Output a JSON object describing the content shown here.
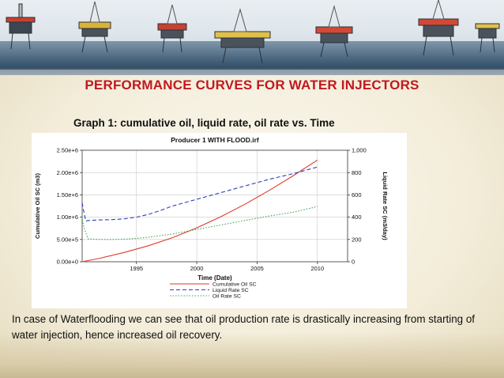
{
  "slide": {
    "title": "PERFORMANCE CURVES FOR WATER INJECTORS",
    "subtitle": "Graph 1: cumulative oil, liquid rate, oil rate vs. Time",
    "caption": "In case of Waterflooding we can see that oil production rate is drastically increasing from starting of water injection, hence increased oil recovery."
  },
  "background": {
    "title_color": "#c0191f",
    "sea_color": "#4c6880"
  },
  "chart_data": {
    "type": "line",
    "title": "Producer 1 WITH FLOOD.irf",
    "xlabel": "Time (Date)",
    "ylabel": "Cumulative Oil SC (m3)",
    "y2label": "Liquid Rate SC (m3/day)",
    "x_ticks": [
      "1995",
      "2000",
      "2005",
      "2010"
    ],
    "y_ticks": [
      "0.00e+0",
      "5.00e+5",
      "1.00e+6",
      "1.50e+6",
      "2.00e+6",
      "2.50e+6"
    ],
    "y2_ticks": [
      "0",
      "200",
      "400",
      "600",
      "800",
      "1,000"
    ],
    "xlim": [
      1990.5,
      2012.5
    ],
    "ylim": [
      0,
      2500000
    ],
    "y2lim": [
      0,
      1000
    ],
    "grid": true,
    "legend_position": "bottom-center",
    "series": [
      {
        "name": "Cumulative Oil SC",
        "axis": "left",
        "color": "#e03a2a",
        "style": "solid",
        "x": [
          1990.5,
          1992,
          1994,
          1996,
          1998,
          2000,
          2002,
          2004,
          2006,
          2008,
          2010
        ],
        "values": [
          0,
          80000,
          210000,
          360000,
          540000,
          760000,
          1010000,
          1290000,
          1600000,
          1930000,
          2280000
        ]
      },
      {
        "name": "Liquid Rate SC",
        "axis": "right",
        "color": "#2d3fb8",
        "style": "dashed",
        "x": [
          1990.5,
          1990.6,
          1990.8,
          1991,
          1992,
          1993,
          1994,
          1995,
          1996,
          1997,
          1998,
          2000,
          2002,
          2004,
          2006,
          2008,
          2010
        ],
        "values": [
          530,
          470,
          365,
          370,
          375,
          378,
          385,
          400,
          425,
          460,
          500,
          560,
          620,
          680,
          740,
          790,
          850
        ]
      },
      {
        "name": "Oil Rate SC",
        "axis": "right",
        "color": "#3aa655",
        "style": "dotted",
        "x": [
          1990.5,
          1990.6,
          1990.8,
          1991,
          1992,
          1993,
          1994,
          1995,
          1996,
          1998,
          2000,
          2002,
          2004,
          2006,
          2008,
          2010
        ],
        "values": [
          400,
          330,
          260,
          205,
          200,
          200,
          203,
          210,
          220,
          250,
          290,
          330,
          370,
          410,
          445,
          495
        ]
      }
    ]
  }
}
